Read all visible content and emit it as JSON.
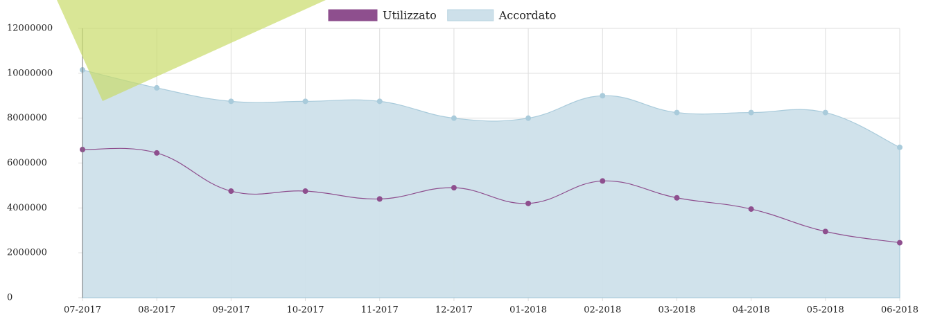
{
  "chart_data": {
    "type": "line",
    "categories": [
      "07-2017",
      "08-2017",
      "09-2017",
      "10-2017",
      "11-2017",
      "12-2017",
      "01-2018",
      "02-2018",
      "03-2018",
      "04-2018",
      "05-2018",
      "06-2018"
    ],
    "series": [
      {
        "name": "Utilizzato",
        "color": "#8e4f8e",
        "values": [
          6600000,
          6450000,
          4750000,
          4750000,
          4400000,
          4900000,
          4200000,
          5200000,
          4450000,
          3950000,
          2950000,
          2450000
        ]
      },
      {
        "name": "Accordato",
        "color": "#cde0ea",
        "values": [
          10150000,
          9350000,
          8750000,
          8750000,
          8750000,
          8000000,
          8000000,
          9000000,
          8250000,
          8250000,
          8250000,
          6700000
        ]
      }
    ],
    "ylim": [
      0,
      12000000
    ],
    "yticks": [
      0,
      2000000,
      4000000,
      6000000,
      8000000,
      10000000,
      12000000
    ],
    "grid": true
  }
}
